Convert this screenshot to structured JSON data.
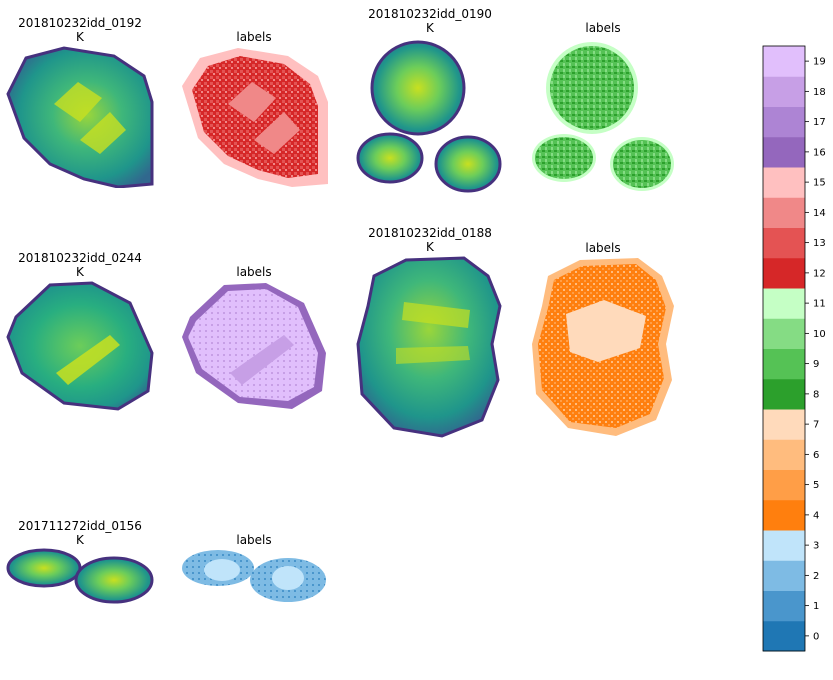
{
  "chart_data": {
    "type": "heatmap",
    "colorbar": {
      "ticks": [
        "0",
        "1",
        "2",
        "3",
        "4",
        "5",
        "6",
        "7",
        "8",
        "9",
        "10",
        "11",
        "12",
        "13",
        "14",
        "15",
        "16",
        "17",
        "18",
        "19"
      ],
      "colors": [
        "#1f77b4",
        "#4a96cc",
        "#7ebbe4",
        "#c0e4fa",
        "#ff7f0e",
        "#ff9e47",
        "#ffbc7e",
        "#ffdabb",
        "#2ca02c",
        "#55c255",
        "#85dc84",
        "#c5ffc5",
        "#d62728",
        "#e45353",
        "#f08888",
        "#ffc0c0",
        "#9467bd",
        "#ad84d4",
        "#c79fe6",
        "#e1bffc"
      ],
      "range": [
        0,
        19
      ]
    },
    "samples": [
      {
        "id": "s0192",
        "name": "201810232idd_0192",
        "left_label": "K",
        "right_label": "labels",
        "label_group": 3
      },
      {
        "id": "s0190",
        "name": "201810232idd_0190",
        "left_label": "K",
        "right_label": "labels",
        "label_group": 2
      },
      {
        "id": "s0244",
        "name": "201810232idd_0244",
        "left_label": "K",
        "right_label": "labels",
        "label_group": 4
      },
      {
        "id": "s0188",
        "name": "201810232idd_0188",
        "left_label": "K",
        "right_label": "labels",
        "label_group": 1
      },
      {
        "id": "s0156",
        "name": "201711272idd_0156",
        "left_label": "K",
        "right_label": "labels",
        "label_group": 0
      }
    ]
  }
}
